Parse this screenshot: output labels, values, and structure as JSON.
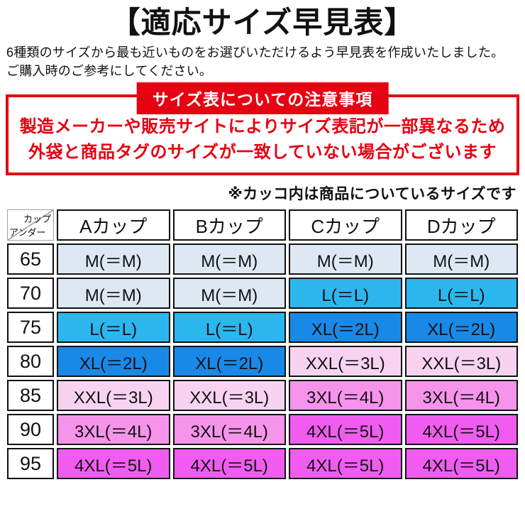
{
  "page": {
    "title": "【適応サイズ早見表】",
    "intro_line1": "6種類のサイズから最も近いものをお選びいただけるよう早見表を作成いたしました。",
    "intro_line2": "ご購入時のご参考にしてください。"
  },
  "notice": {
    "banner": "サイズ表についての注意事項",
    "line1": "製造メーカーや販売サイトによりサイズ表記が一部異なるため",
    "line2": "外袋と商品タグのサイズが一致していない場合がございます",
    "accent_color": "#e60012"
  },
  "paren_note": "※カッコ内は商品についているサイズです",
  "table": {
    "corner": {
      "top": "カップ",
      "bottom": "アンダー"
    },
    "columns": [
      "Aカップ",
      "Bカップ",
      "Cカップ",
      "Dカップ"
    ],
    "rows": [
      {
        "under": "65",
        "cells": [
          "M(＝M)",
          "M(＝M)",
          "M(＝M)",
          "M(＝M)"
        ]
      },
      {
        "under": "70",
        "cells": [
          "M(＝M)",
          "M(＝M)",
          "L(＝L)",
          "L(＝L)"
        ]
      },
      {
        "under": "75",
        "cells": [
          "L(＝L)",
          "L(＝L)",
          "XL(＝2L)",
          "XL(＝2L)"
        ]
      },
      {
        "under": "80",
        "cells": [
          "XL(＝2L)",
          "XL(＝2L)",
          "XXL(＝3L)",
          "XXL(＝3L)"
        ]
      },
      {
        "under": "85",
        "cells": [
          "XXL(＝3L)",
          "XXL(＝3L)",
          "3XL(＝4L)",
          "3XL(＝4L)"
        ]
      },
      {
        "under": "90",
        "cells": [
          "3XL(＝4L)",
          "3XL(＝4L)",
          "4XL(＝5L)",
          "4XL(＝5L)"
        ]
      },
      {
        "under": "95",
        "cells": [
          "4XL(＝5L)",
          "4XL(＝5L)",
          "4XL(＝5L)",
          "4XL(＝5L)"
        ]
      }
    ],
    "size_colors": {
      "M": "#dde8f2",
      "L": "#2bb7ee",
      "XL": "#1989e8",
      "XXL": "#f7d3f1",
      "3XL": "#f693eb",
      "4XL": "#f05cf0"
    }
  }
}
